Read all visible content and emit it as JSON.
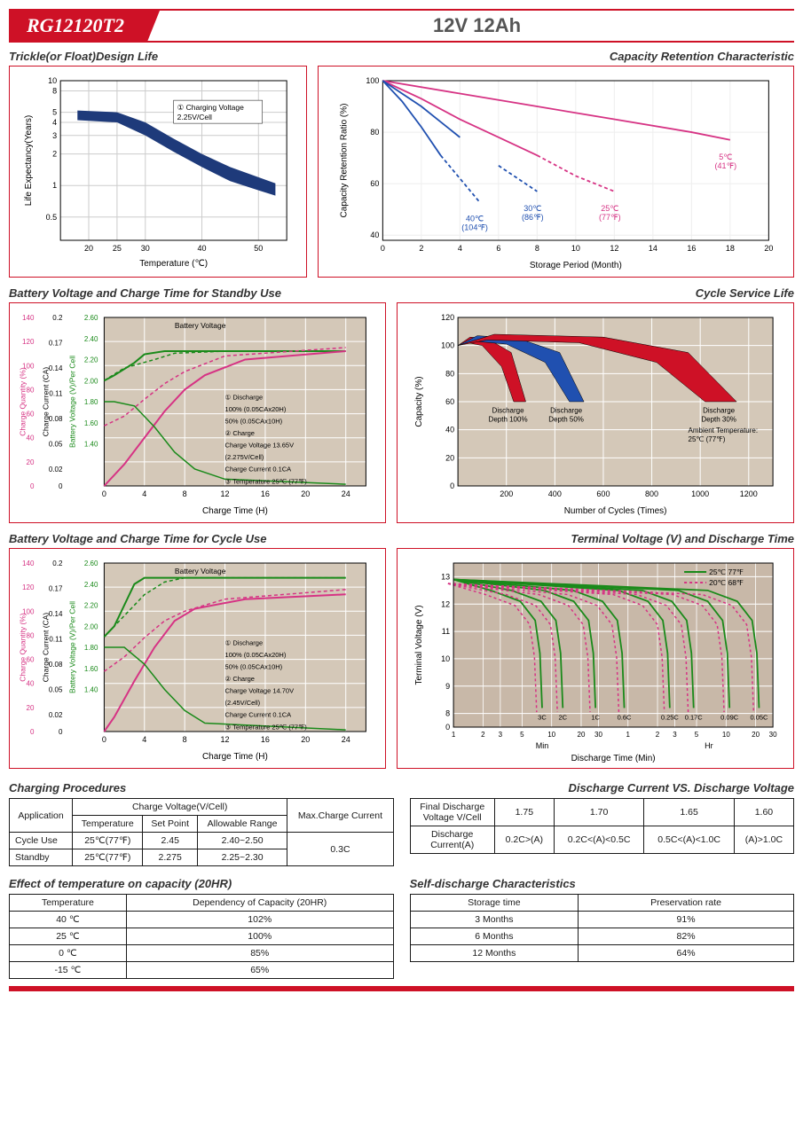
{
  "header": {
    "model": "RG12120T2",
    "spec": "12V 12Ah"
  },
  "colors": {
    "brand": "#ce1126",
    "navy": "#1e3a7a",
    "magenta": "#d63384",
    "green": "#1a8a1a",
    "black": "#000",
    "grid": "#cccccc",
    "teal": "#5a8a8a",
    "blue": "#2050b0",
    "red": "#ce1126"
  },
  "chart_trickle": {
    "title": "Trickle(or Float)Design Life",
    "xlabel": "Temperature (℃)",
    "ylabel": "Life Expectancy(Years)",
    "xlim": [
      15,
      55
    ],
    "xticks": [
      20,
      25,
      30,
      40,
      50
    ],
    "ylim": [
      0.3,
      10
    ],
    "yticks": [
      0.5,
      1,
      2,
      3,
      4,
      5,
      8,
      10
    ],
    "yscale": "log",
    "band_upper": [
      [
        18,
        5.2
      ],
      [
        25,
        5
      ],
      [
        30,
        4
      ],
      [
        35,
        2.8
      ],
      [
        40,
        2
      ],
      [
        45,
        1.5
      ],
      [
        50,
        1.2
      ],
      [
        53,
        1.05
      ]
    ],
    "band_lower": [
      [
        18,
        4.2
      ],
      [
        25,
        4
      ],
      [
        30,
        3
      ],
      [
        35,
        2.1
      ],
      [
        40,
        1.5
      ],
      [
        45,
        1.1
      ],
      [
        50,
        0.9
      ],
      [
        53,
        0.8
      ]
    ],
    "band_color": "#1e3a7a",
    "annotation": "① Charging Voltage\n2.25V/Cell"
  },
  "chart_retention": {
    "title": "Capacity Retention Characteristic",
    "xlabel": "Storage Period (Month)",
    "ylabel": "Capacity Retention Ratio (%)",
    "xlim": [
      0,
      20
    ],
    "xticks": [
      0,
      2,
      4,
      6,
      8,
      10,
      12,
      14,
      16,
      18,
      20
    ],
    "ylim": [
      38,
      100
    ],
    "yticks": [
      40,
      60,
      80,
      100
    ],
    "series": [
      {
        "label": "5℃\n(41℉)",
        "color": "#d63384",
        "points": [
          [
            0,
            100
          ],
          [
            4,
            95
          ],
          [
            8,
            90
          ],
          [
            12,
            85
          ],
          [
            16,
            80
          ],
          [
            18,
            77
          ]
        ]
      },
      {
        "label": "25℃\n(77℉)",
        "color": "#d63384",
        "points": [
          [
            0,
            100
          ],
          [
            2,
            93
          ],
          [
            4,
            85
          ],
          [
            6,
            78
          ],
          [
            8,
            71
          ],
          [
            10,
            63
          ],
          [
            12,
            57
          ]
        ],
        "dash_after": 8
      },
      {
        "label": "30℃\n(86℉)",
        "color": "#2050b0",
        "points": [
          [
            0,
            100
          ],
          [
            2,
            90
          ],
          [
            4,
            78
          ],
          [
            6,
            67
          ],
          [
            8,
            57
          ]
        ],
        "dash_after": 5
      },
      {
        "label": "40℃\n(104℉)",
        "color": "#2050b0",
        "points": [
          [
            0,
            100
          ],
          [
            1,
            92
          ],
          [
            2,
            82
          ],
          [
            3,
            71
          ],
          [
            4,
            62
          ],
          [
            5,
            53
          ]
        ],
        "dash_after": 3
      }
    ]
  },
  "chart_standby": {
    "title": "Battery Voltage and Charge Time for Standby Use",
    "xlabel": "Charge Time (H)",
    "ylabels": [
      "Charge Quantity (%)",
      "Charge Current (CA)",
      "Battery Voltage (V)/Per Cell"
    ],
    "xlim": [
      0,
      26
    ],
    "xticks": [
      0,
      4,
      8,
      12,
      16,
      20,
      24
    ],
    "y1": {
      "lim": [
        0,
        140
      ],
      "ticks": [
        0,
        20,
        40,
        60,
        80,
        100,
        120,
        140
      ]
    },
    "y2": {
      "lim": [
        0,
        0.2
      ],
      "ticks": [
        0,
        0.02,
        0.05,
        0.08,
        0.11,
        0.14,
        0.17,
        0.2
      ]
    },
    "y3": {
      "lim": [
        1.0,
        2.6
      ],
      "ticks": [
        1.4,
        1.6,
        1.8,
        2.0,
        2.2,
        2.4,
        2.6
      ]
    },
    "voltage": {
      "color": "#1a8a1a",
      "solid": [
        [
          0,
          2.0
        ],
        [
          1,
          2.05
        ],
        [
          3,
          2.17
        ],
        [
          4,
          2.25
        ],
        [
          6,
          2.28
        ],
        [
          10,
          2.28
        ],
        [
          24,
          2.28
        ]
      ],
      "dash": [
        [
          0,
          2.0
        ],
        [
          2,
          2.12
        ],
        [
          5,
          2.2
        ],
        [
          7,
          2.26
        ],
        [
          12,
          2.28
        ],
        [
          24,
          2.28
        ]
      ]
    },
    "quantity": {
      "color": "#d63384",
      "solid": [
        [
          0,
          0
        ],
        [
          2,
          18
        ],
        [
          4,
          40
        ],
        [
          6,
          62
        ],
        [
          8,
          80
        ],
        [
          10,
          92
        ],
        [
          14,
          105
        ],
        [
          24,
          112
        ]
      ],
      "dash": [
        [
          0,
          50
        ],
        [
          2,
          58
        ],
        [
          4,
          72
        ],
        [
          6,
          85
        ],
        [
          8,
          95
        ],
        [
          12,
          108
        ],
        [
          24,
          115
        ]
      ]
    },
    "current": {
      "color": "#1a8a1a",
      "points": [
        [
          0,
          0.1
        ],
        [
          1,
          0.1
        ],
        [
          3,
          0.095
        ],
        [
          5,
          0.07
        ],
        [
          7,
          0.04
        ],
        [
          9,
          0.02
        ],
        [
          12,
          0.008
        ],
        [
          24,
          0.002
        ]
      ]
    },
    "notes": [
      "① Discharge",
      "100% (0.05CAx20H)",
      "50% (0.05CAx10H)",
      "② Charge",
      "Charge Voltage 13.65V",
      "(2.275V/Cell)",
      "Charge Current 0.1CA",
      "③ Temperature 25℃ (77℉)"
    ]
  },
  "chart_cycle_life": {
    "title": "Cycle Service Life",
    "xlabel": "Number of Cycles (Times)",
    "ylabel": "Capacity (%)",
    "xlim": [
      0,
      1300
    ],
    "xticks": [
      200,
      400,
      600,
      800,
      1000,
      1200
    ],
    "ylim": [
      0,
      120
    ],
    "yticks": [
      0,
      20,
      40,
      60,
      80,
      100,
      120
    ],
    "bands": [
      {
        "label": "Discharge\nDepth 100%",
        "color": "#ce1126",
        "upper": [
          [
            0,
            100
          ],
          [
            50,
            106
          ],
          [
            120,
            105
          ],
          [
            220,
            95
          ],
          [
            280,
            60
          ]
        ],
        "lower": [
          [
            0,
            100
          ],
          [
            40,
            102
          ],
          [
            100,
            100
          ],
          [
            180,
            85
          ],
          [
            230,
            60
          ]
        ]
      },
      {
        "label": "Discharge\nDepth 50%",
        "color": "#2050b0",
        "upper": [
          [
            0,
            100
          ],
          [
            80,
            107
          ],
          [
            250,
            105
          ],
          [
            420,
            95
          ],
          [
            520,
            60
          ]
        ],
        "lower": [
          [
            0,
            100
          ],
          [
            70,
            103
          ],
          [
            200,
            101
          ],
          [
            360,
            88
          ],
          [
            460,
            60
          ]
        ]
      },
      {
        "label": "Discharge\nDepth 30%",
        "color": "#ce1126",
        "upper": [
          [
            0,
            100
          ],
          [
            150,
            108
          ],
          [
            600,
            106
          ],
          [
            950,
            95
          ],
          [
            1150,
            60
          ]
        ],
        "lower": [
          [
            0,
            100
          ],
          [
            120,
            104
          ],
          [
            500,
            102
          ],
          [
            820,
            88
          ],
          [
            1020,
            60
          ]
        ]
      }
    ],
    "note": "Ambient Temperature:\n25℃ (77℉)"
  },
  "chart_cycle_charge": {
    "title": "Battery Voltage and Charge Time for Cycle Use",
    "xlabel": "Charge Time (H)",
    "xlim": [
      0,
      26
    ],
    "xticks": [
      0,
      4,
      8,
      12,
      16,
      20,
      24
    ],
    "voltage": {
      "color": "#1a8a1a",
      "solid": [
        [
          0,
          1.9
        ],
        [
          1,
          2.0
        ],
        [
          2,
          2.2
        ],
        [
          3,
          2.4
        ],
        [
          4,
          2.46
        ],
        [
          10,
          2.46
        ],
        [
          24,
          2.46
        ]
      ],
      "dash": [
        [
          0,
          1.9
        ],
        [
          2,
          2.1
        ],
        [
          4,
          2.3
        ],
        [
          6,
          2.42
        ],
        [
          8,
          2.46
        ],
        [
          24,
          2.46
        ]
      ]
    },
    "quantity": {
      "color": "#d63384",
      "solid": [
        [
          0,
          0
        ],
        [
          1,
          12
        ],
        [
          3,
          42
        ],
        [
          5,
          70
        ],
        [
          7,
          92
        ],
        [
          9,
          102
        ],
        [
          14,
          110
        ],
        [
          24,
          114
        ]
      ],
      "dash": [
        [
          0,
          50
        ],
        [
          2,
          62
        ],
        [
          4,
          78
        ],
        [
          6,
          92
        ],
        [
          8,
          100
        ],
        [
          12,
          110
        ],
        [
          24,
          118
        ]
      ]
    },
    "current": {
      "color": "#1a8a1a",
      "points": [
        [
          0,
          0.1
        ],
        [
          2,
          0.1
        ],
        [
          4,
          0.08
        ],
        [
          6,
          0.05
        ],
        [
          8,
          0.025
        ],
        [
          10,
          0.01
        ],
        [
          24,
          0.002
        ]
      ]
    },
    "notes": [
      "① Discharge",
      "100% (0.05CAx20H)",
      "50% (0.05CAx10H)",
      "② Charge",
      "Charge Voltage 14.70V",
      "(2.45V/Cell)",
      "Charge Current 0.1CA",
      "③ Temperature 25℃ (77℉)"
    ]
  },
  "chart_discharge": {
    "title": "Terminal Voltage (V) and Discharge Time",
    "xlabel": "Discharge Time (Min)",
    "ylabel": "Terminal Voltage (V)",
    "ylim": [
      0,
      13.5
    ],
    "yticks": [
      0,
      8,
      9,
      10,
      11,
      12,
      13
    ],
    "xsegments": [
      "Min",
      "Hr"
    ],
    "legend": [
      {
        "label": "25℃ 77℉",
        "color": "#1a8a1a",
        "dash": false
      },
      {
        "label": "20℃ 68℉",
        "color": "#d63384",
        "dash": true
      }
    ],
    "curves": [
      "3C",
      "2C",
      "1C",
      "0.6C",
      "0.25C",
      "0.17C",
      "0.09C",
      "0.05C"
    ]
  },
  "table_procedures": {
    "title": "Charging Procedures",
    "headers": [
      "Application",
      "Temperature",
      "Set Point",
      "Allowable Range",
      "Max.Charge Current"
    ],
    "header_group": "Charge Voltage(V/Cell)",
    "rows": [
      [
        "Cycle Use",
        "25℃(77℉)",
        "2.45",
        "2.40~2.50"
      ],
      [
        "Standby",
        "25℃(77℉)",
        "2.275",
        "2.25~2.30"
      ]
    ],
    "max_current": "0.3C"
  },
  "table_discharge_voltage": {
    "title": "Discharge Current VS. Discharge Voltage",
    "row1": [
      "Final Discharge Voltage V/Cell",
      "1.75",
      "1.70",
      "1.65",
      "1.60"
    ],
    "row2": [
      "Discharge Current(A)",
      "0.2C>(A)",
      "0.2C<(A)<0.5C",
      "0.5C<(A)<1.0C",
      "(A)>1.0C"
    ]
  },
  "table_temp_capacity": {
    "title": "Effect of temperature on capacity (20HR)",
    "headers": [
      "Temperature",
      "Dependency of Capacity (20HR)"
    ],
    "rows": [
      [
        "40 ℃",
        "102%"
      ],
      [
        "25 ℃",
        "100%"
      ],
      [
        "0 ℃",
        "85%"
      ],
      [
        "-15 ℃",
        "65%"
      ]
    ]
  },
  "table_self_discharge": {
    "title": "Self-discharge Characteristics",
    "headers": [
      "Storage time",
      "Preservation rate"
    ],
    "rows": [
      [
        "3 Months",
        "91%"
      ],
      [
        "6 Months",
        "82%"
      ],
      [
        "12 Months",
        "64%"
      ]
    ]
  }
}
